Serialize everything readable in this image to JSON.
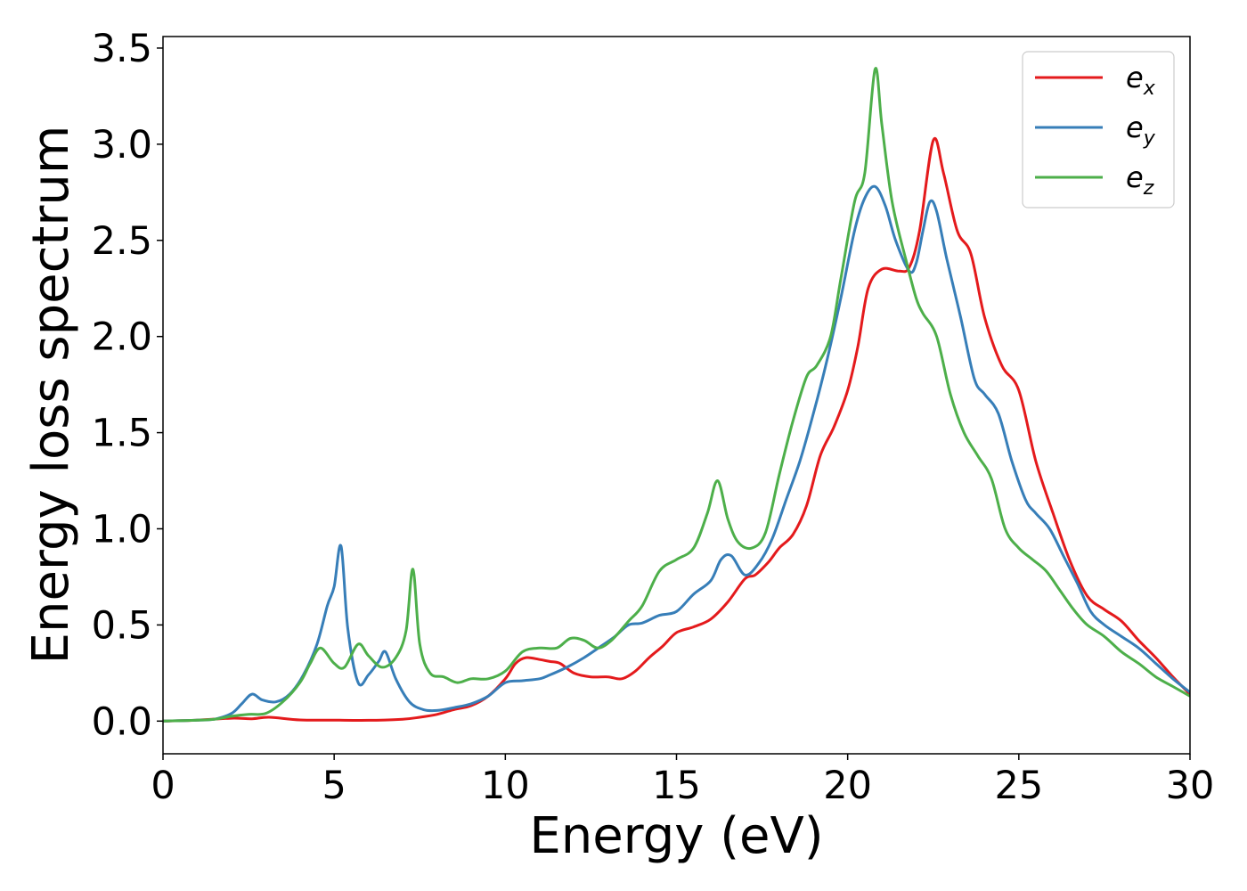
{
  "chart_data": {
    "type": "line",
    "title": "",
    "xlabel": "Energy (eV)",
    "ylabel": "Energy loss spectrum",
    "xlim": [
      0,
      30
    ],
    "ylim": [
      -0.17,
      3.56
    ],
    "xticks": [
      0,
      5,
      10,
      15,
      20,
      25,
      30
    ],
    "xtick_labels": [
      "0",
      "5",
      "10",
      "15",
      "20",
      "25",
      "30"
    ],
    "yticks": [
      0.0,
      0.5,
      1.0,
      1.5,
      2.0,
      2.5,
      3.0,
      3.5
    ],
    "ytick_labels": [
      "0.0",
      "0.5",
      "1.0",
      "1.5",
      "2.0",
      "2.5",
      "3.0",
      "3.5"
    ],
    "grid": false,
    "legend_position": "top-right",
    "series": [
      {
        "name_base": "e",
        "name_sub": "x",
        "color": "#e41a1c",
        "points": [
          [
            0,
            0
          ],
          [
            1,
            0.005
          ],
          [
            2,
            0.015
          ],
          [
            2.6,
            0.012
          ],
          [
            3.1,
            0.02
          ],
          [
            4,
            0.006
          ],
          [
            5,
            0.005
          ],
          [
            6,
            0.004
          ],
          [
            7,
            0.01
          ],
          [
            7.5,
            0.02
          ],
          [
            8,
            0.035
          ],
          [
            8.5,
            0.06
          ],
          [
            9,
            0.08
          ],
          [
            9.5,
            0.13
          ],
          [
            10,
            0.22
          ],
          [
            10.3,
            0.3
          ],
          [
            10.6,
            0.33
          ],
          [
            11,
            0.32
          ],
          [
            11.3,
            0.31
          ],
          [
            11.6,
            0.3
          ],
          [
            12,
            0.25
          ],
          [
            12.5,
            0.23
          ],
          [
            13,
            0.23
          ],
          [
            13.4,
            0.22
          ],
          [
            13.8,
            0.26
          ],
          [
            14.2,
            0.33
          ],
          [
            14.6,
            0.39
          ],
          [
            15,
            0.46
          ],
          [
            15.5,
            0.49
          ],
          [
            16,
            0.53
          ],
          [
            16.5,
            0.62
          ],
          [
            17,
            0.74
          ],
          [
            17.3,
            0.76
          ],
          [
            17.7,
            0.83
          ],
          [
            18,
            0.9
          ],
          [
            18.4,
            0.97
          ],
          [
            18.8,
            1.12
          ],
          [
            19.2,
            1.38
          ],
          [
            19.6,
            1.53
          ],
          [
            20,
            1.72
          ],
          [
            20.3,
            1.95
          ],
          [
            20.6,
            2.25
          ],
          [
            21,
            2.35
          ],
          [
            21.5,
            2.34
          ],
          [
            21.8,
            2.36
          ],
          [
            22.1,
            2.55
          ],
          [
            22.5,
            3.02
          ],
          [
            22.8,
            2.85
          ],
          [
            23.2,
            2.55
          ],
          [
            23.6,
            2.43
          ],
          [
            24,
            2.1
          ],
          [
            24.5,
            1.85
          ],
          [
            25,
            1.72
          ],
          [
            25.5,
            1.35
          ],
          [
            26,
            1.08
          ],
          [
            26.5,
            0.83
          ],
          [
            27,
            0.65
          ],
          [
            27.5,
            0.58
          ],
          [
            28,
            0.52
          ],
          [
            28.5,
            0.42
          ],
          [
            29,
            0.33
          ],
          [
            29.5,
            0.23
          ],
          [
            30,
            0.14
          ]
        ]
      },
      {
        "name_base": "e",
        "name_sub": "y",
        "color": "#377eb8",
        "points": [
          [
            0,
            0
          ],
          [
            1,
            0.005
          ],
          [
            1.5,
            0.01
          ],
          [
            2,
            0.04
          ],
          [
            2.3,
            0.09
          ],
          [
            2.6,
            0.14
          ],
          [
            2.9,
            0.11
          ],
          [
            3.3,
            0.1
          ],
          [
            3.7,
            0.14
          ],
          [
            4.1,
            0.24
          ],
          [
            4.5,
            0.4
          ],
          [
            4.8,
            0.6
          ],
          [
            5,
            0.7
          ],
          [
            5.2,
            0.91
          ],
          [
            5.4,
            0.48
          ],
          [
            5.7,
            0.2
          ],
          [
            6,
            0.24
          ],
          [
            6.3,
            0.31
          ],
          [
            6.5,
            0.36
          ],
          [
            6.8,
            0.22
          ],
          [
            7.2,
            0.1
          ],
          [
            7.6,
            0.06
          ],
          [
            8,
            0.055
          ],
          [
            8.5,
            0.07
          ],
          [
            9,
            0.09
          ],
          [
            9.5,
            0.13
          ],
          [
            10,
            0.2
          ],
          [
            10.5,
            0.21
          ],
          [
            11,
            0.22
          ],
          [
            11.3,
            0.24
          ],
          [
            11.8,
            0.28
          ],
          [
            12.3,
            0.33
          ],
          [
            12.8,
            0.39
          ],
          [
            13.2,
            0.44
          ],
          [
            13.6,
            0.5
          ],
          [
            14,
            0.51
          ],
          [
            14.5,
            0.55
          ],
          [
            15,
            0.57
          ],
          [
            15.5,
            0.66
          ],
          [
            16,
            0.73
          ],
          [
            16.3,
            0.84
          ],
          [
            16.6,
            0.86
          ],
          [
            17,
            0.76
          ],
          [
            17.4,
            0.82
          ],
          [
            17.8,
            0.95
          ],
          [
            18.2,
            1.15
          ],
          [
            18.6,
            1.35
          ],
          [
            19,
            1.6
          ],
          [
            19.4,
            1.88
          ],
          [
            19.8,
            2.2
          ],
          [
            20.2,
            2.55
          ],
          [
            20.5,
            2.72
          ],
          [
            20.8,
            2.78
          ],
          [
            21.1,
            2.68
          ],
          [
            21.4,
            2.5
          ],
          [
            21.8,
            2.34
          ],
          [
            22,
            2.38
          ],
          [
            22.2,
            2.55
          ],
          [
            22.4,
            2.7
          ],
          [
            22.6,
            2.65
          ],
          [
            22.9,
            2.4
          ],
          [
            23.3,
            2.1
          ],
          [
            23.7,
            1.78
          ],
          [
            24,
            1.7
          ],
          [
            24.4,
            1.6
          ],
          [
            24.8,
            1.35
          ],
          [
            25.2,
            1.15
          ],
          [
            25.5,
            1.08
          ],
          [
            25.9,
            1.0
          ],
          [
            26.3,
            0.86
          ],
          [
            26.7,
            0.72
          ],
          [
            27.1,
            0.57
          ],
          [
            27.5,
            0.5
          ],
          [
            28,
            0.44
          ],
          [
            28.5,
            0.38
          ],
          [
            29,
            0.3
          ],
          [
            29.5,
            0.22
          ],
          [
            30,
            0.15
          ]
        ]
      },
      {
        "name_base": "e",
        "name_sub": "z",
        "color": "#4daf4a",
        "points": [
          [
            0,
            0
          ],
          [
            1,
            0.005
          ],
          [
            1.5,
            0.01
          ],
          [
            2,
            0.025
          ],
          [
            2.5,
            0.035
          ],
          [
            3,
            0.04
          ],
          [
            3.5,
            0.1
          ],
          [
            4,
            0.2
          ],
          [
            4.3,
            0.3
          ],
          [
            4.6,
            0.38
          ],
          [
            5,
            0.3
          ],
          [
            5.3,
            0.28
          ],
          [
            5.7,
            0.4
          ],
          [
            6,
            0.34
          ],
          [
            6.4,
            0.28
          ],
          [
            6.8,
            0.33
          ],
          [
            7.1,
            0.47
          ],
          [
            7.3,
            0.79
          ],
          [
            7.5,
            0.4
          ],
          [
            7.8,
            0.25
          ],
          [
            8.2,
            0.23
          ],
          [
            8.6,
            0.2
          ],
          [
            9,
            0.22
          ],
          [
            9.5,
            0.22
          ],
          [
            10,
            0.26
          ],
          [
            10.5,
            0.36
          ],
          [
            11,
            0.38
          ],
          [
            11.5,
            0.38
          ],
          [
            11.9,
            0.43
          ],
          [
            12.3,
            0.42
          ],
          [
            12.7,
            0.38
          ],
          [
            13.1,
            0.42
          ],
          [
            13.6,
            0.52
          ],
          [
            14,
            0.6
          ],
          [
            14.5,
            0.78
          ],
          [
            15,
            0.84
          ],
          [
            15.5,
            0.9
          ],
          [
            15.9,
            1.08
          ],
          [
            16.2,
            1.25
          ],
          [
            16.5,
            1.05
          ],
          [
            16.8,
            0.93
          ],
          [
            17.2,
            0.9
          ],
          [
            17.6,
            0.98
          ],
          [
            18,
            1.28
          ],
          [
            18.4,
            1.56
          ],
          [
            18.8,
            1.79
          ],
          [
            19.1,
            1.85
          ],
          [
            19.5,
            2.0
          ],
          [
            19.8,
            2.3
          ],
          [
            20.2,
            2.7
          ],
          [
            20.5,
            2.85
          ],
          [
            20.8,
            3.39
          ],
          [
            21,
            3.1
          ],
          [
            21.3,
            2.7
          ],
          [
            21.7,
            2.4
          ],
          [
            22,
            2.2
          ],
          [
            22.2,
            2.12
          ],
          [
            22.6,
            2.0
          ],
          [
            23,
            1.7
          ],
          [
            23.4,
            1.5
          ],
          [
            23.8,
            1.38
          ],
          [
            24.2,
            1.26
          ],
          [
            24.6,
            1.0
          ],
          [
            25,
            0.9
          ],
          [
            25.4,
            0.84
          ],
          [
            25.8,
            0.78
          ],
          [
            26.2,
            0.68
          ],
          [
            26.6,
            0.58
          ],
          [
            27,
            0.5
          ],
          [
            27.5,
            0.44
          ],
          [
            28,
            0.36
          ],
          [
            28.5,
            0.3
          ],
          [
            29,
            0.23
          ],
          [
            29.5,
            0.18
          ],
          [
            30,
            0.13
          ]
        ]
      }
    ]
  }
}
